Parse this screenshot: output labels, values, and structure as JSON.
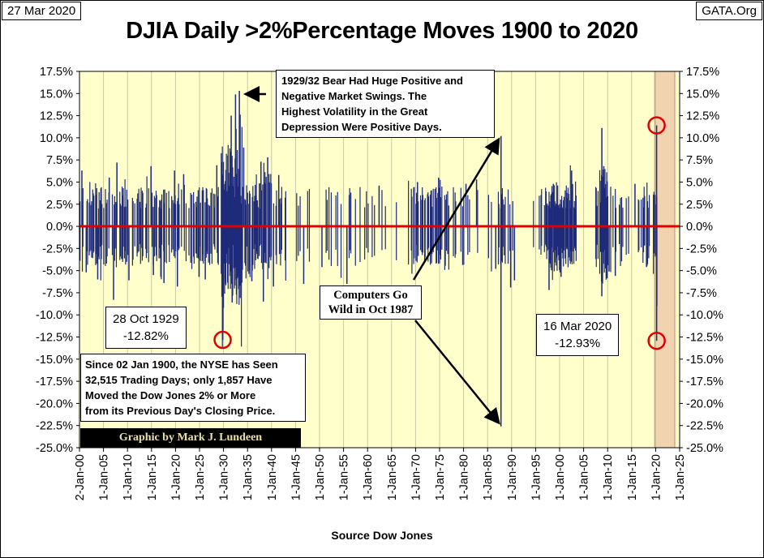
{
  "header": {
    "date": "27 Mar 2020",
    "site": "GATA.Org",
    "title": "DJIA Daily >2%Percentage Moves 1900 to 2020"
  },
  "annotations": {
    "bear_1929": "1929/32  Bear Had Huge Positive and\nNegative Market Swings.  The\nHighest Volatility in the Great\nDepression Were Positive Days.",
    "computers_1987": "Computers Go\nWild in Oct 1987",
    "crash_1929": "28 Oct 1929\n-12.82%",
    "crash_2020": "16 Mar 2020\n-12.93%",
    "since_1900": "Since 02 Jan 1900,  the NYSE has Seen\n32,515  Trading Days; only 1,857  Have\nMoved the Dow Jones 2% or More\nfrom its Previous Day's Closing Price.",
    "credit": "Graphic by Mark J. Lundeen",
    "source": "Source Dow Jones"
  },
  "colors": {
    "plot_bg": "#ffffcc",
    "bars": "#1f2a7a",
    "zero_line": "#e00000",
    "circle": "#e00000",
    "highlight": "#f2d3b0"
  },
  "chart_data": {
    "type": "bar",
    "title": "DJIA Daily >2%Percentage Moves 1900 to 2020",
    "xlabel": "Source Dow Jones",
    "ylabel": "",
    "ylim": [
      -25,
      17.5
    ],
    "xlim": [
      "1900-01-02",
      "2025-01-01"
    ],
    "grid": "vertical",
    "x_ticks": [
      "2-Jan-00",
      "1-Jan-05",
      "1-Jan-10",
      "1-Jan-15",
      "1-Jan-20",
      "1-Jan-25",
      "1-Jan-30",
      "1-Jan-35",
      "1-Jan-40",
      "1-Jan-45",
      "1-Jan-50",
      "1-Jan-55",
      "1-Jan-60",
      "1-Jan-65",
      "1-Jan-70",
      "1-Jan-75",
      "1-Jan-80",
      "1-Jan-85",
      "1-Jan-90",
      "1-Jan-95",
      "1-Jan-00",
      "1-Jan-05",
      "1-Jan-10",
      "1-Jan-15",
      "1-Jan-20",
      "1-Jan-25"
    ],
    "y_ticks": [
      "17.5%",
      "15.0%",
      "12.5%",
      "10.0%",
      "7.5%",
      "5.0%",
      "2.5%",
      "0.0%",
      "-2.5%",
      "-5.0%",
      "-7.5%",
      "-10.0%",
      "-12.5%",
      "-15.0%",
      "-17.5%",
      "-20.0%",
      "-22.5%",
      "-25.0%"
    ],
    "y_tick_values": [
      17.5,
      15,
      12.5,
      10,
      7.5,
      5,
      2.5,
      0,
      -2.5,
      -5,
      -7.5,
      -10,
      -12.5,
      -15,
      -17.5,
      -20,
      -22.5,
      -25
    ],
    "series": [
      {
        "name": "",
        "x": [
          1900.5,
          1901.4,
          1903.8,
          1906.2,
          1907.1,
          1907.8,
          1910.3,
          1914.9,
          1915.4,
          1917.6,
          1919.8,
          1920.4,
          1921.7,
          1924.9,
          1926.2,
          1928.6,
          1929.82,
          1929.87,
          1930.9,
          1931.6,
          1931.8,
          1932.5,
          1932.6,
          1932.7,
          1933.3,
          1933.4,
          1933.5,
          1934.2,
          1935.9,
          1937.8,
          1938.3,
          1939.2,
          1940.4,
          1941.5,
          1946.7,
          1950.5,
          1955.7,
          1962.4,
          1970.4,
          1974.8,
          1980.5,
          1982.7,
          1986.7,
          1987.79,
          1987.8,
          1989.8,
          1990.6,
          1997.8,
          1998.7,
          2000.3,
          2002.5,
          2008.8,
          2008.79,
          2009.2,
          2010.3,
          2011.6,
          2015.7,
          2018.1,
          2020.21,
          2020.2,
          2020.25
        ],
        "values": [
          6.3,
          -5.2,
          -6.0,
          5.5,
          -8.3,
          7.2,
          -6.1,
          6.8,
          -5.5,
          -6.4,
          6.3,
          -6.8,
          5.9,
          -5.7,
          -6.0,
          6.9,
          -12.82,
          -11.7,
          8.0,
          12.5,
          -8.6,
          14.9,
          11.0,
          -7.7,
          15.3,
          10.2,
          -6.7,
          8.9,
          -6.2,
          7.3,
          -8.5,
          7.8,
          -6.8,
          5.8,
          -6.5,
          -4.6,
          -6.5,
          4.6,
          5.0,
          5.5,
          4.8,
          5.3,
          -4.8,
          -22.6,
          10.2,
          -6.9,
          -6.1,
          -7.2,
          4.8,
          -5.7,
          6.3,
          11.1,
          -7.9,
          6.8,
          -5.1,
          -5.6,
          4.8,
          -4.6,
          -12.93,
          11.4,
          -9.0
        ]
      }
    ]
  }
}
